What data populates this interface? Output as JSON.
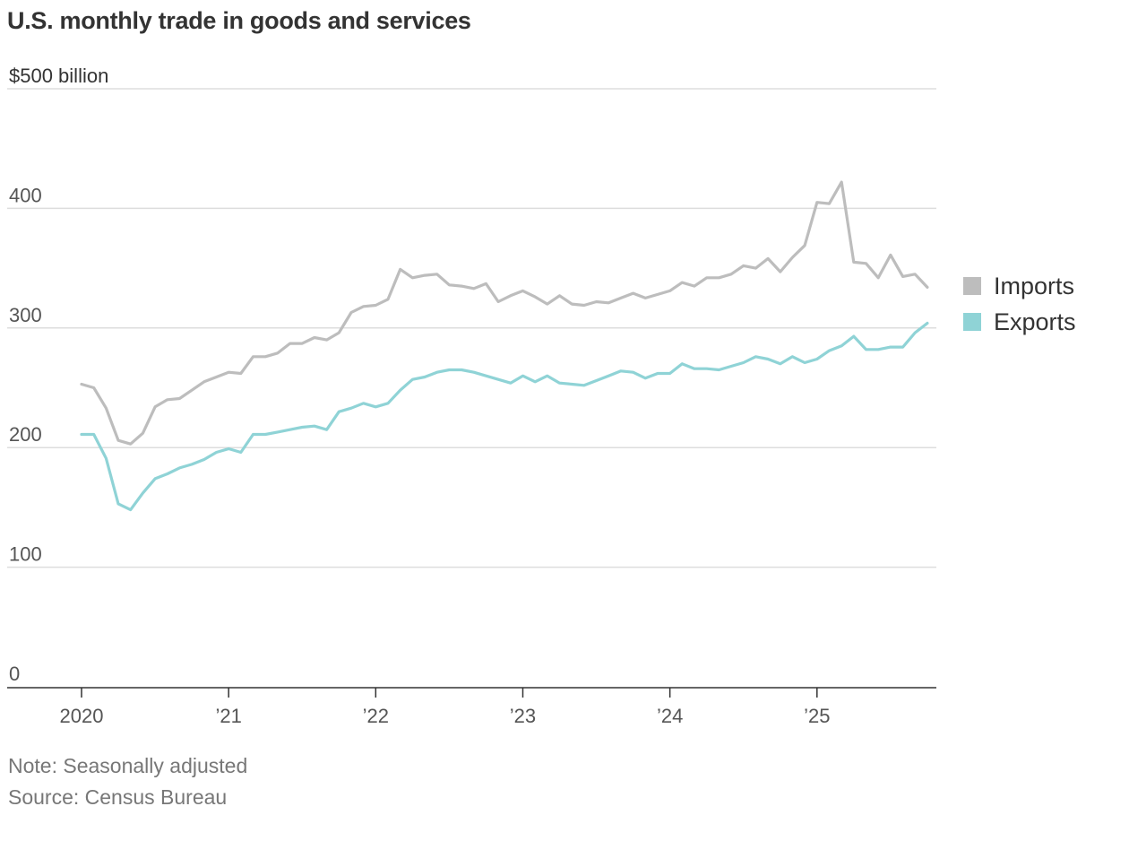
{
  "title": "U.S. monthly trade in goods and services",
  "note": "Note: Seasonally adjusted",
  "source": "Source: Census Bureau",
  "colors": {
    "imports": "#bdbdbd",
    "exports": "#8fd3d6",
    "grid": "#dddddd",
    "axis": "#333333"
  },
  "chart_data": {
    "type": "line",
    "title": "U.S. monthly trade in goods and services",
    "ylabel": "$ billion",
    "ylim": [
      0,
      500
    ],
    "yticks": [
      {
        "value": 0,
        "label": "0"
      },
      {
        "value": 100,
        "label": "100"
      },
      {
        "value": 200,
        "label": "200"
      },
      {
        "value": 300,
        "label": "300"
      },
      {
        "value": 400,
        "label": "400"
      },
      {
        "value": 500,
        "label": "$500 billion"
      }
    ],
    "xticks": [
      {
        "index": 0,
        "label": "2020"
      },
      {
        "index": 12,
        "label": "’21"
      },
      {
        "index": 24,
        "label": "’22"
      },
      {
        "index": 36,
        "label": "’23"
      },
      {
        "index": 48,
        "label": "’24"
      },
      {
        "index": 60,
        "label": "’25"
      }
    ],
    "x_start": "2020-01",
    "x_count": 70,
    "legend": [
      "Imports",
      "Exports"
    ],
    "series": [
      {
        "name": "Imports",
        "values": [
          253,
          250,
          233,
          206,
          203,
          212,
          234,
          240,
          241,
          248,
          255,
          259,
          263,
          262,
          276,
          276,
          279,
          287,
          287,
          292,
          290,
          296,
          313,
          318,
          319,
          324,
          349,
          342,
          344,
          345,
          336,
          335,
          333,
          337,
          322,
          327,
          331,
          326,
          320,
          327,
          320,
          319,
          322,
          321,
          325,
          329,
          325,
          328,
          331,
          338,
          335,
          342,
          342,
          345,
          352,
          350,
          358,
          347,
          359,
          369,
          405,
          404,
          422,
          355,
          354,
          342,
          361,
          343,
          345,
          334
        ]
      },
      {
        "name": "Exports",
        "values": [
          211,
          211,
          191,
          153,
          148,
          162,
          174,
          178,
          183,
          186,
          190,
          196,
          199,
          196,
          211,
          211,
          213,
          215,
          217,
          218,
          215,
          230,
          233,
          237,
          234,
          237,
          248,
          257,
          259,
          263,
          265,
          265,
          263,
          260,
          257,
          254,
          260,
          255,
          260,
          254,
          253,
          252,
          256,
          260,
          264,
          263,
          258,
          262,
          262,
          270,
          266,
          266,
          265,
          268,
          271,
          276,
          274,
          270,
          276,
          271,
          274,
          281,
          285,
          293,
          282,
          282,
          284,
          284,
          296,
          304
        ]
      }
    ]
  }
}
